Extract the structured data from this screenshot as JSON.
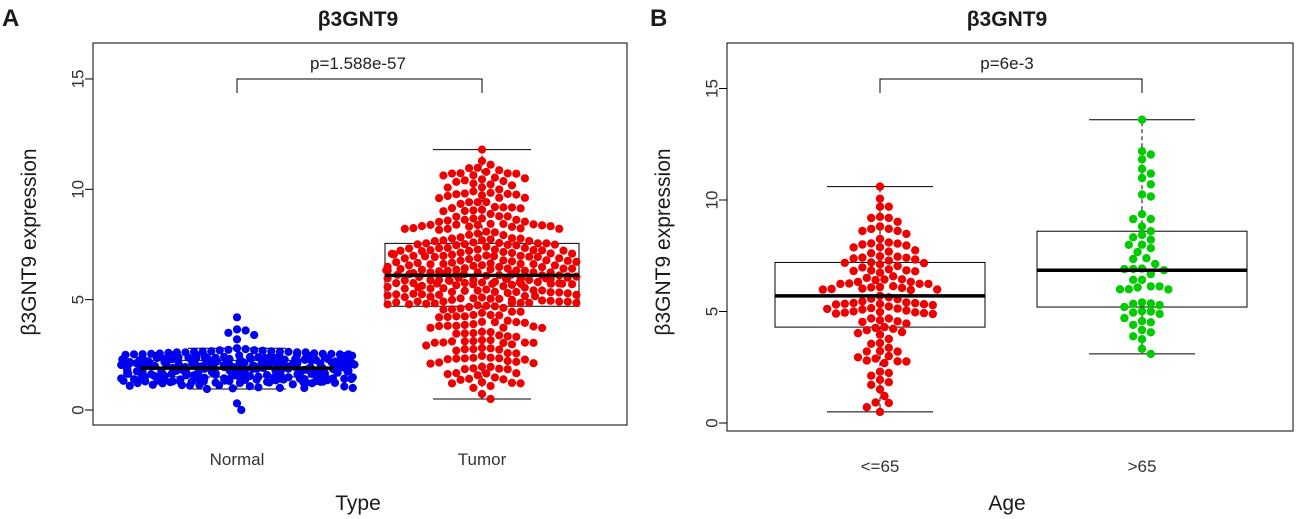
{
  "chart_data": [
    {
      "type": "box",
      "panel_label": "A",
      "title": "β3GNT9",
      "xlabel": "Type",
      "ylabel": "β3GNT9 expression",
      "categories": [
        "Normal",
        "Tumor"
      ],
      "yticks": [
        "0",
        "5",
        "10",
        "15"
      ],
      "ylim": [
        -0.6,
        16.5
      ],
      "pvalue": "p=1.588e-57",
      "boxes": [
        {
          "name": "Normal",
          "min": 0.95,
          "q1": 1.5,
          "median": 1.9,
          "q3": 2.25,
          "max": 2.8,
          "color": "#0000ee"
        },
        {
          "name": "Tumor",
          "min": 0.5,
          "q1": 4.7,
          "median": 6.1,
          "q3": 7.55,
          "max": 11.8,
          "color": "#ee0000"
        }
      ],
      "outliers": [
        {
          "category": "Normal",
          "values": [
            0.0,
            0.3,
            3.2,
            3.4,
            3.5,
            3.6,
            3.65,
            4.2
          ]
        }
      ],
      "point_counts": [
        300,
        374
      ]
    },
    {
      "type": "box",
      "panel_label": "B",
      "title": "β3GNT9",
      "xlabel": "Age",
      "ylabel": "β3GNT9 expression",
      "categories": [
        "<=65",
        ">65"
      ],
      "yticks": [
        "0",
        "5",
        "10",
        "15"
      ],
      "ylim": [
        -0.3,
        17
      ],
      "pvalue": "p=6e-3",
      "boxes": [
        {
          "name": "<=65",
          "min": 0.5,
          "q1": 4.3,
          "median": 5.7,
          "q3": 7.2,
          "max": 10.6,
          "color": "#ee0000"
        },
        {
          "name": ">65",
          "min": 3.1,
          "q1": 5.2,
          "median": 6.85,
          "q3": 8.6,
          "max": 13.6,
          "color": "#00cc00"
        }
      ],
      "point_counts": [
        130,
        60
      ]
    }
  ]
}
